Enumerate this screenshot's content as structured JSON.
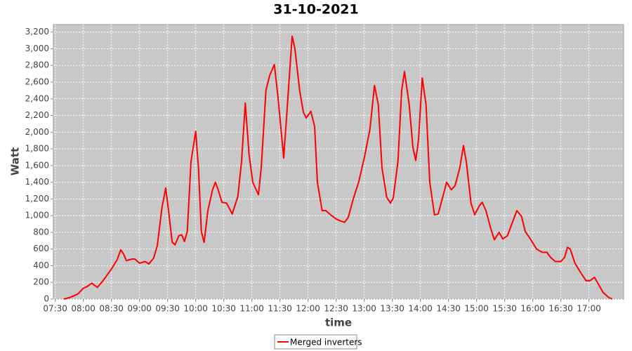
{
  "chart_data": {
    "type": "line",
    "title": "31-10-2021",
    "x_label": "time",
    "y_label": "Watt",
    "x": [
      "07:39",
      "07:46",
      "07:54",
      "08:00",
      "08:04",
      "08:09",
      "08:15",
      "08:21",
      "08:30",
      "08:36",
      "08:40",
      "08:43",
      "08:46",
      "08:52",
      "08:55",
      "09:00",
      "09:06",
      "09:10",
      "09:15",
      "09:19",
      "09:24",
      "09:28",
      "09:31",
      "09:35",
      "09:38",
      "09:42",
      "09:45",
      "09:48",
      "09:51",
      "09:55",
      "10:00",
      "10:03",
      "10:06",
      "10:09",
      "10:13",
      "10:18",
      "10:21",
      "10:24",
      "10:28",
      "10:33",
      "10:39",
      "10:45",
      "10:49",
      "10:53",
      "10:57",
      "11:01",
      "11:07",
      "11:10",
      "11:15",
      "11:19",
      "11:24",
      "11:28",
      "11:34",
      "11:39",
      "11:43",
      "11:46",
      "11:51",
      "11:55",
      "11:58",
      "12:03",
      "12:07",
      "12:10",
      "12:15",
      "12:19",
      "12:24",
      "12:30",
      "12:34",
      "12:39",
      "12:43",
      "12:48",
      "12:54",
      "13:00",
      "13:06",
      "13:11",
      "13:15",
      "13:19",
      "13:24",
      "13:28",
      "13:31",
      "13:36",
      "13:40",
      "13:43",
      "13:48",
      "13:52",
      "13:55",
      "13:58",
      "14:02",
      "14:06",
      "14:10",
      "14:15",
      "14:19",
      "14:24",
      "14:28",
      "14:33",
      "14:37",
      "14:42",
      "14:46",
      "14:49",
      "14:54",
      "14:58",
      "15:03",
      "15:06",
      "15:10",
      "15:15",
      "15:19",
      "15:24",
      "15:28",
      "15:33",
      "15:37",
      "15:43",
      "15:48",
      "15:52",
      "15:58",
      "16:04",
      "16:10",
      "16:15",
      "16:19",
      "16:24",
      "16:30",
      "16:34",
      "16:37",
      "16:40",
      "16:45",
      "16:51",
      "16:57",
      "17:01",
      "17:06",
      "17:10",
      "17:15",
      "17:21",
      "17:25"
    ],
    "series": [
      {
        "name": "Merged inverters",
        "color": "#ff0000",
        "values": [
          0,
          20,
          60,
          130,
          150,
          190,
          140,
          220,
          360,
          470,
          590,
          540,
          460,
          480,
          480,
          430,
          450,
          420,
          490,
          640,
          1100,
          1330,
          1060,
          680,
          650,
          760,
          770,
          690,
          810,
          1650,
          2010,
          1560,
          810,
          680,
          1060,
          1310,
          1400,
          1310,
          1160,
          1150,
          1020,
          1230,
          1650,
          2350,
          1730,
          1400,
          1250,
          1570,
          2500,
          2680,
          2810,
          2410,
          1690,
          2500,
          3150,
          3000,
          2500,
          2240,
          2170,
          2250,
          2070,
          1400,
          1060,
          1060,
          1010,
          960,
          940,
          920,
          980,
          1190,
          1400,
          1690,
          2030,
          2560,
          2330,
          1570,
          1220,
          1150,
          1210,
          1650,
          2500,
          2730,
          2330,
          1820,
          1660,
          1910,
          2650,
          2330,
          1400,
          1010,
          1020,
          1230,
          1400,
          1310,
          1360,
          1570,
          1840,
          1650,
          1150,
          1010,
          1120,
          1160,
          1060,
          850,
          710,
          800,
          720,
          760,
          880,
          1060,
          990,
          810,
          710,
          600,
          560,
          560,
          500,
          450,
          450,
          500,
          620,
          600,
          430,
          320,
          220,
          220,
          260,
          180,
          80,
          20,
          0
        ]
      }
    ],
    "xlim": [
      "07:28",
      "17:37"
    ],
    "xticks": [
      "07:30",
      "08:00",
      "08:30",
      "09:00",
      "09:30",
      "10:00",
      "10:30",
      "11:00",
      "11:30",
      "12:00",
      "12:30",
      "13:00",
      "13:30",
      "14:00",
      "14:30",
      "15:00",
      "15:30",
      "16:00",
      "16:30",
      "17:00"
    ],
    "ylim": [
      0,
      3290
    ],
    "yticks": [
      0,
      200,
      400,
      600,
      800,
      {
        "value": 1000,
        "label": "1,000"
      },
      {
        "value": 1200,
        "label": "1,200"
      },
      {
        "value": 1400,
        "label": "1,400"
      },
      {
        "value": 1600,
        "label": "1,600"
      },
      {
        "value": 1800,
        "label": "1,800"
      },
      {
        "value": 2000,
        "label": "2,000"
      },
      {
        "value": 2200,
        "label": "2,200"
      },
      {
        "value": 2400,
        "label": "2,400"
      },
      {
        "value": 2600,
        "label": "2,600"
      },
      {
        "value": 2800,
        "label": "2,800"
      },
      {
        "value": 3000,
        "label": "3,000"
      },
      {
        "value": 3200,
        "label": "3,200"
      }
    ],
    "grid": true,
    "legend": "bottom"
  }
}
